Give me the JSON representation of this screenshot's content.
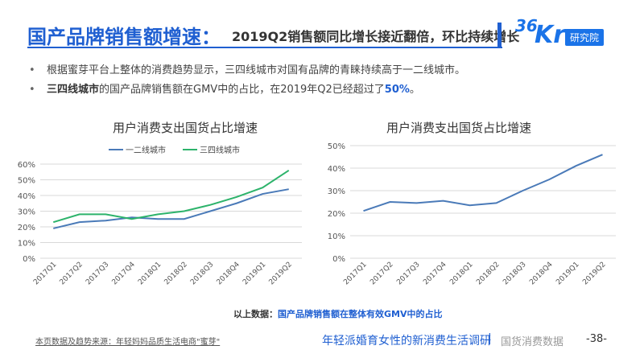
{
  "header": {
    "title_main": "国产品牌销售额增速：",
    "title_sub": "2019Q2销售额同比增长接近翻倍，环比持续增长",
    "logo_36": "36",
    "logo_kr": "Kr",
    "logo_tag": "研究院"
  },
  "bullets": {
    "dot": "•",
    "line1": "根据蜜芽平台上整体的消费趋势显示，三四线城市对国有品牌的青睐持续高于一二线城市。",
    "line2_bold": "三四线城市",
    "line2_mid": "的国产品牌销售额在GMV中的占比，在2019年Q2已经超过了",
    "line2_hl": "50%",
    "line2_end": "。"
  },
  "chart_data": [
    {
      "type": "line",
      "title": "用户消费支出国货占比增速",
      "categories": [
        "2017Q1",
        "2017Q2",
        "2017Q3",
        "2017Q4",
        "2018Q1",
        "2018Q2",
        "2018Q3",
        "2018Q4",
        "2019Q1",
        "2019Q2"
      ],
      "series": [
        {
          "name": "一二线城市",
          "color": "#4a7ab8",
          "values": [
            19,
            23,
            24,
            26,
            25,
            25,
            30,
            35,
            41,
            44
          ]
        },
        {
          "name": "三四线城市",
          "color": "#2db36b",
          "values": [
            23,
            28,
            28,
            25,
            28,
            30,
            34,
            39,
            45,
            56
          ]
        }
      ],
      "ylim": [
        0,
        60
      ],
      "yticks": [
        "0%",
        "10%",
        "20%",
        "30%",
        "40%",
        "50%",
        "60%"
      ],
      "legend_position": "top-center",
      "grid": true
    },
    {
      "type": "line",
      "title": "用户消费支出国货占比增速",
      "categories": [
        "2017Q1",
        "2017Q2",
        "2017Q3",
        "2017Q4",
        "2018Q1",
        "2018Q2",
        "2018Q3",
        "2018Q4",
        "2019Q1",
        "2019Q2"
      ],
      "series": [
        {
          "color": "#4a7ab8",
          "values": [
            21,
            25,
            24.5,
            25.5,
            23.5,
            24.5,
            30,
            35,
            41,
            46
          ]
        }
      ],
      "ylim": [
        0,
        50
      ],
      "yticks": [
        "0%",
        "10%",
        "20%",
        "30%",
        "40%",
        "50%"
      ],
      "grid": true
    }
  ],
  "footnote": {
    "prefix": "以上数据：",
    "highlight": "国产品牌销售额在整体有效GMV中的占比"
  },
  "footer": {
    "source": "本页数据及趋势来源：年轻妈妈品质生活电商\"蜜芽\"",
    "report_title": "年轻派婚育女性的新消费生活调研",
    "separator": "|",
    "section": "国货消费数据",
    "page": "-38-"
  }
}
